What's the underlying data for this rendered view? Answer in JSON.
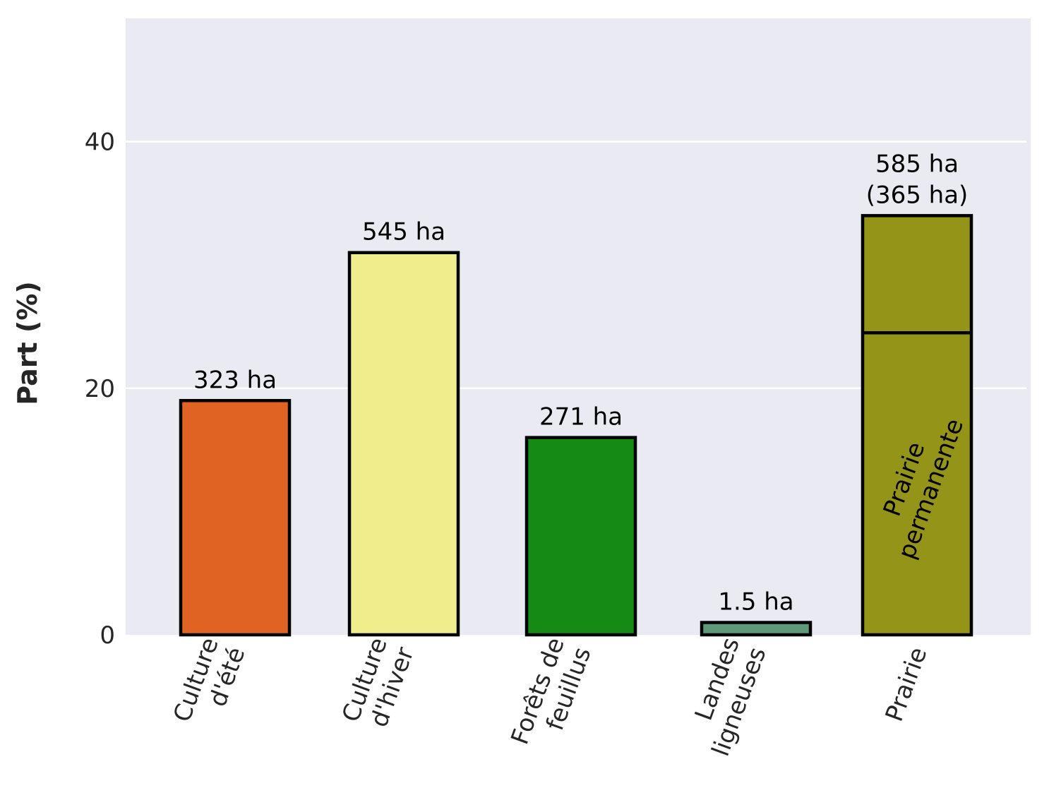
{
  "chart_data": {
    "type": "bar",
    "ylabel": "Part (%)",
    "ylim": [
      0,
      50
    ],
    "yticks": [
      0,
      20,
      40
    ],
    "grid": true,
    "categories": [
      {
        "label_lines": [
          "Culture",
          "d'été"
        ],
        "value": 19.0,
        "color": "#e06323",
        "annotation_lines": [
          "323 ha"
        ]
      },
      {
        "label_lines": [
          "Culture",
          "d'hiver"
        ],
        "value": 31.0,
        "color": "#f0ed8c",
        "annotation_lines": [
          "545 ha"
        ]
      },
      {
        "label_lines": [
          "Forêts de",
          "feuillus"
        ],
        "value": 16.0,
        "color": "#158a15",
        "annotation_lines": [
          "271 ha"
        ]
      },
      {
        "label_lines": [
          "Landes",
          "ligneuses"
        ],
        "value": 1.0,
        "color": "#5e9a7a",
        "annotation_lines": [
          "1.5 ha"
        ]
      },
      {
        "label_lines": [
          "Prairie"
        ],
        "value": 34.0,
        "color": "#949418",
        "annotation_lines": [
          "585 ha",
          "(365 ha)"
        ],
        "segments": [
          {
            "value": 24.5,
            "label_lines": [
              "Prairie",
              "permanente"
            ]
          },
          {
            "value": 9.5
          }
        ]
      }
    ]
  }
}
